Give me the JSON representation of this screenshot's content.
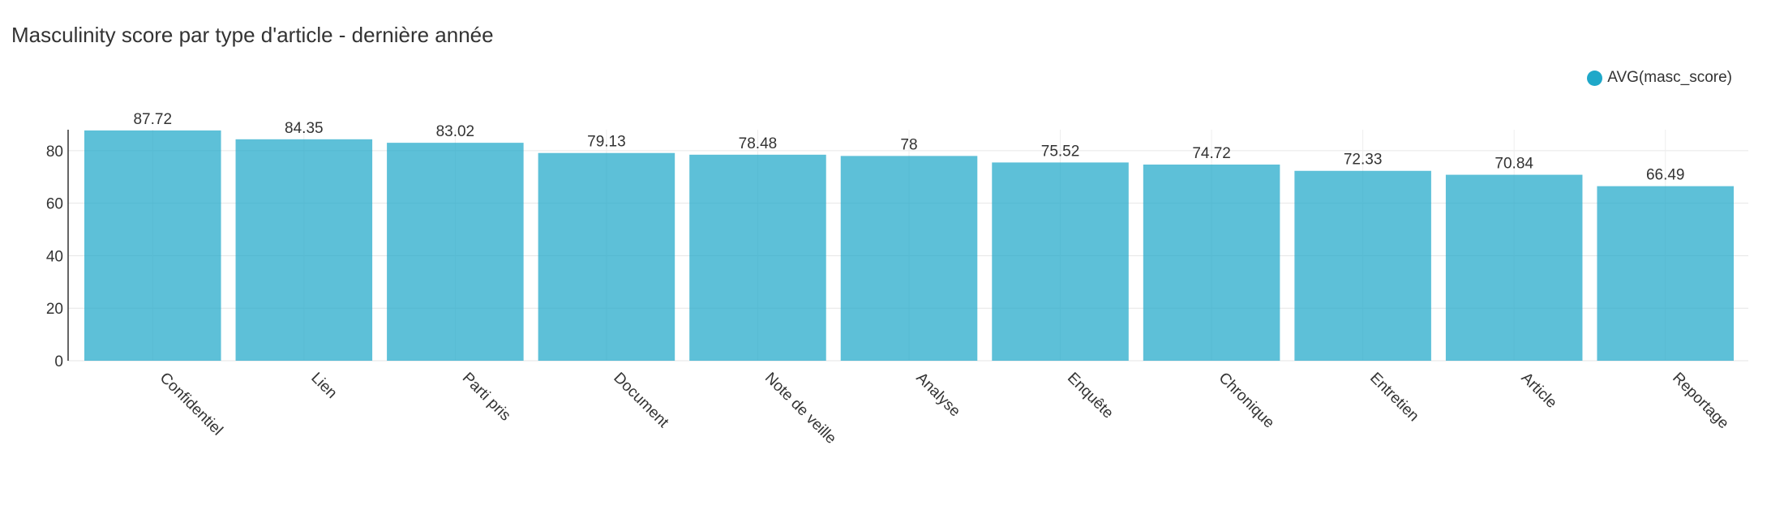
{
  "chart_data": {
    "type": "bar",
    "title": "Masculinity score par type d'article - dernière année",
    "xlabel": "",
    "ylabel": "",
    "categories": [
      "Confidentiel",
      "Lien",
      "Parti pris",
      "Document",
      "Note de veille",
      "Analyse",
      "Enquête",
      "Chronique",
      "Entretien",
      "Article",
      "Reportage"
    ],
    "series": [
      {
        "name": "AVG(masc_score)",
        "values": [
          87.72,
          84.35,
          83.02,
          79.13,
          78.48,
          78,
          75.52,
          74.72,
          72.33,
          70.84,
          66.49
        ],
        "labels": [
          "87.72",
          "84.35",
          "83.02",
          "79.13",
          "78.48",
          "78",
          "75.52",
          "74.72",
          "72.33",
          "70.84",
          "66.49"
        ]
      }
    ],
    "ylim": [
      0,
      88
    ],
    "yticks": [
      0,
      20,
      40,
      60,
      80
    ],
    "grid": true,
    "legend_position": "top-right",
    "bar_color": "#1fa8c9"
  }
}
